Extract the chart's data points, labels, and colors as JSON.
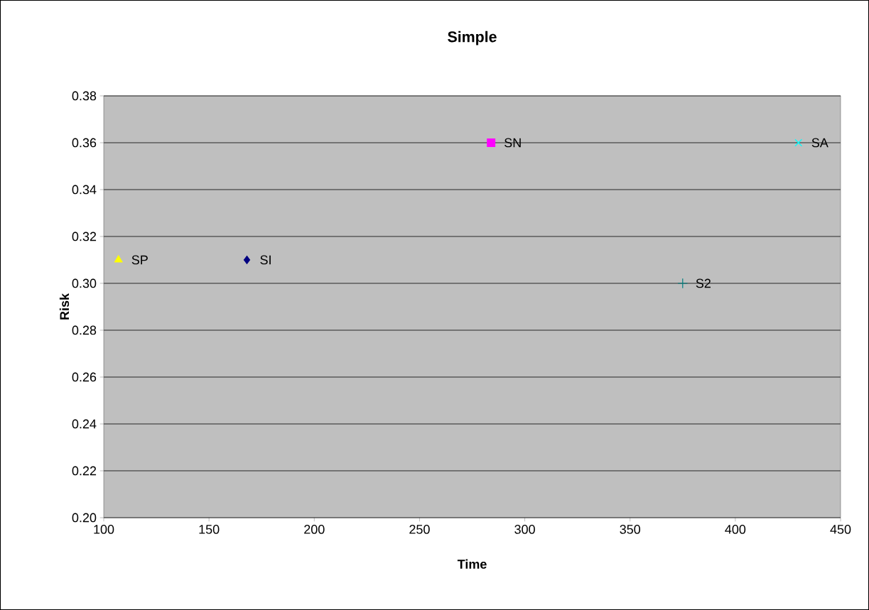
{
  "chart_data": {
    "type": "scatter",
    "title": "Simple",
    "xlabel": "Time",
    "ylabel": "Risk",
    "xlim": [
      100,
      450
    ],
    "xticks": [
      100,
      150,
      200,
      250,
      300,
      350,
      400,
      450
    ],
    "ylim": [
      0.2,
      0.38
    ],
    "yticks": [
      {
        "value": 0.2,
        "label": "0.20"
      },
      {
        "value": 0.22,
        "label": "0.22"
      },
      {
        "value": 0.24,
        "label": "0.24"
      },
      {
        "value": 0.26,
        "label": "0.26"
      },
      {
        "value": 0.28,
        "label": "0.28"
      },
      {
        "value": 0.3,
        "label": "0.30"
      },
      {
        "value": 0.32,
        "label": "0.32"
      },
      {
        "value": 0.34,
        "label": "0.34"
      },
      {
        "value": 0.36,
        "label": "0.36"
      },
      {
        "value": 0.38,
        "label": "0.38"
      }
    ],
    "grid": "y",
    "legend": false,
    "series": [
      {
        "name": "SP",
        "color": "#ffff00",
        "marker": "triangle",
        "x": [
          107
        ],
        "values": [
          0.31
        ]
      },
      {
        "name": "SI",
        "color": "#000080",
        "marker": "diamond",
        "x": [
          168
        ],
        "values": [
          0.31
        ]
      },
      {
        "name": "SN",
        "color": "#ff00ff",
        "marker": "square",
        "x": [
          284
        ],
        "values": [
          0.36
        ]
      },
      {
        "name": "S2",
        "color": "#008080",
        "marker": "cross",
        "x": [
          375
        ],
        "values": [
          0.3
        ]
      },
      {
        "name": "SA",
        "color": "#00ffff",
        "x": [
          430
        ],
        "values": [
          0.36
        ]
      }
    ]
  }
}
